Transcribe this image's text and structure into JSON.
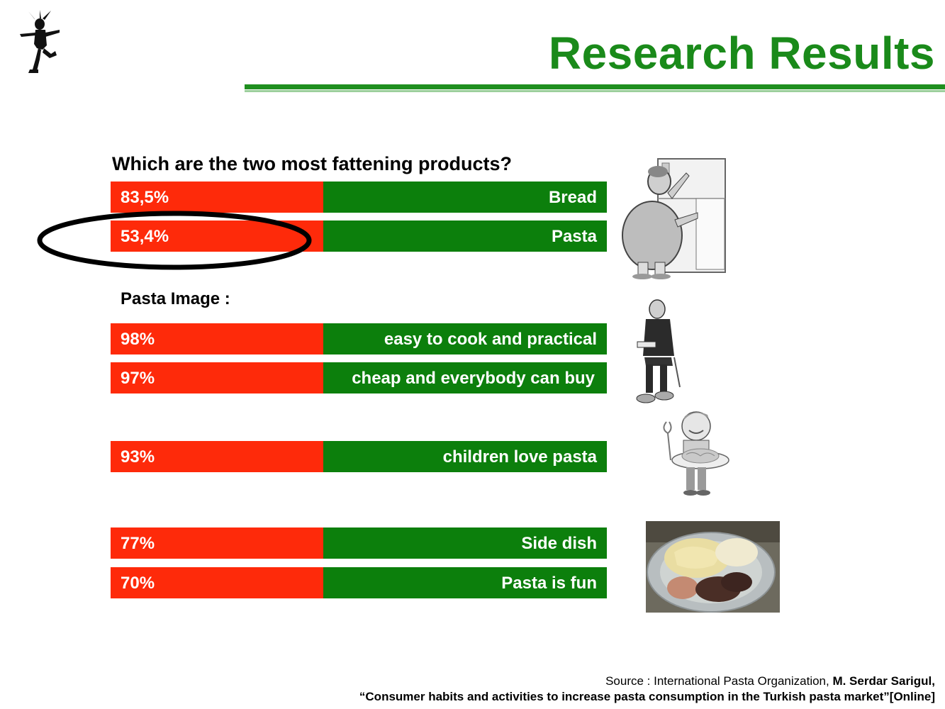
{
  "title": "Research Results",
  "question": "Which are the two most fattening products?",
  "fattening_bars": [
    {
      "pct": "83,5%",
      "label": "Bread"
    },
    {
      "pct": "53,4%",
      "label": "Pasta"
    }
  ],
  "section_title": "Pasta Image :",
  "image_bars": [
    {
      "pct": "98%",
      "label": "easy to cook and practical"
    },
    {
      "pct": "97%",
      "label": "cheap and everybody can buy"
    },
    {
      "pct": "93%",
      "label": "children love pasta"
    },
    {
      "pct": "77%",
      "label": "Side dish"
    },
    {
      "pct": "70%",
      "label": "Pasta is fun"
    }
  ],
  "source": {
    "prefix": "Source : International Pasta Organization, ",
    "author": "M. Serdar Sarigul,",
    "line2": "“Consumer habits and activities to increase pasta consumption in the Turkish pasta market”[Online]"
  },
  "colors": {
    "title": "#1a8a1a",
    "bar_red": "#fe2a0a",
    "bar_green": "#0c7f0c"
  },
  "icons": [
    "jester-logo",
    "woman-at-fridge-illustration",
    "man-reading-illustration",
    "boy-eating-pasta-illustration",
    "pasta-plate-photo"
  ]
}
